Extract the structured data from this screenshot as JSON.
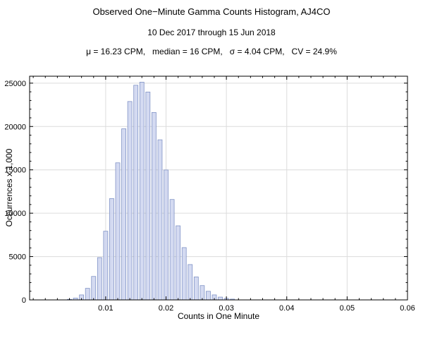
{
  "header": {
    "title": "Observed One−Minute Gamma Counts Histogram, AJ4CO",
    "subtitle": "10 Dec 2017 through 15 Jun 2018",
    "stats_line": "μ = 16.23 CPM,   median = 16 CPM,   σ = 4.04 CPM,   CV = 24.9%"
  },
  "chart_data": {
    "type": "bar",
    "title": "Observed One−Minute Gamma Counts Histogram, AJ4CO",
    "subtitle": "10 Dec 2017 through 15 Jun 2018",
    "xlabel": "Counts in One Minute",
    "ylabel": "Occurrences x 1,000",
    "x": [
      0.004,
      0.005,
      0.006,
      0.007,
      0.008,
      0.009,
      0.01,
      0.011,
      0.012,
      0.013,
      0.014,
      0.015,
      0.016,
      0.017,
      0.018,
      0.019,
      0.02,
      0.021,
      0.022,
      0.023,
      0.024,
      0.025,
      0.026,
      0.027,
      0.028,
      0.029,
      0.03,
      0.031
    ],
    "values": [
      65,
      213,
      575,
      1334,
      2707,
      4881,
      7922,
      11689,
      15810,
      19738,
      22882,
      24758,
      25114,
      23976,
      21618,
      18466,
      14985,
      11582,
      8545,
      6030,
      4077,
      2647,
      1652,
      993,
      576,
      322,
      174,
      91
    ],
    "bar_width": 0.0007,
    "xlim": [
      -0.0026,
      0.06
    ],
    "ylim": [
      0,
      25800
    ],
    "x_ticks": [
      0.01,
      0.02,
      0.03,
      0.04,
      0.05,
      0.06
    ],
    "x_tick_labels": [
      "0.01",
      "0.02",
      "0.03",
      "0.04",
      "0.05",
      "0.06"
    ],
    "x_minor_step": 0.002,
    "y_ticks": [
      0,
      5000,
      10000,
      15000,
      20000,
      25000
    ],
    "y_tick_labels": [
      "0",
      "5000",
      "10000",
      "15000",
      "20000",
      "25000"
    ],
    "y_minor_step": 1000,
    "grid": true,
    "legend": "none",
    "colors": {
      "bar_fill": "#ccd4ef",
      "bar_edge": "#8093c6",
      "grid": "#dcdcdc",
      "frame": "#000000",
      "text": "#000000"
    }
  }
}
